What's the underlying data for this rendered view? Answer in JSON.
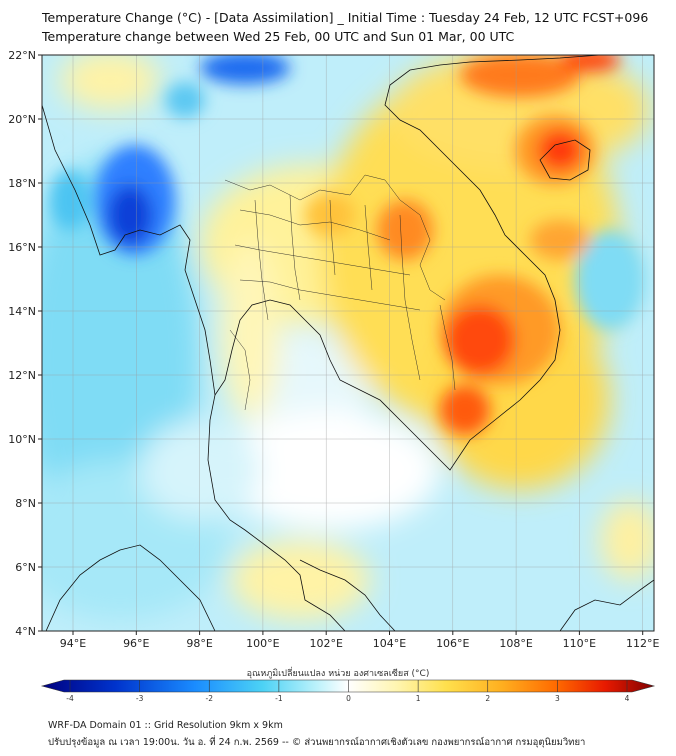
{
  "title": {
    "line1": "Temperature Change (°C) - [Data Assimilation] _ Initial Time : Tuesday 24 Feb, 12 UTC FCST+096",
    "line2": "Temperature change between Wed 25 Feb, 00 UTC and Sun 01 Mar, 00 UTC"
  },
  "axes": {
    "lat_labels": [
      "22°N",
      "20°N",
      "18°N",
      "16°N",
      "14°N",
      "12°N",
      "10°N",
      "8°N",
      "6°N",
      "4°N"
    ],
    "lon_labels": [
      "94°E",
      "96°E",
      "98°E",
      "100°E",
      "102°E",
      "104°E",
      "106°E",
      "108°E",
      "110°E",
      "112°E"
    ]
  },
  "colorbar": {
    "title": "อุณหภูมิเปลี่ยนแปลง หน่วย องศาเซลเซียส (°C)",
    "min": -4,
    "max": 4,
    "labels": [
      "-4",
      "-3",
      "-2",
      "-1",
      "0",
      "1",
      "2",
      "3",
      "4"
    ],
    "colors": [
      "#00007f",
      "#0033cc",
      "#1a8cff",
      "#4cd2f5",
      "#bdf2fb",
      "#ffffff",
      "#fff5b0",
      "#ffe04d",
      "#ffb020",
      "#ff6a00",
      "#e81a00",
      "#7f0000"
    ]
  },
  "footer": {
    "line1": "WRF-DA Domain 01 :: Grid Resolution 9km x 9km",
    "line2": "ปรับปรุงข้อมูล ณ เวลา 19:00น. วัน อ. ที่ 24 ก.พ. 2569 -- © ส่วนพยากรณ์อากาศเชิงตัวเลข กองพยากรณ์อากาศ กรมอุตุนิยมวิทยา"
  }
}
